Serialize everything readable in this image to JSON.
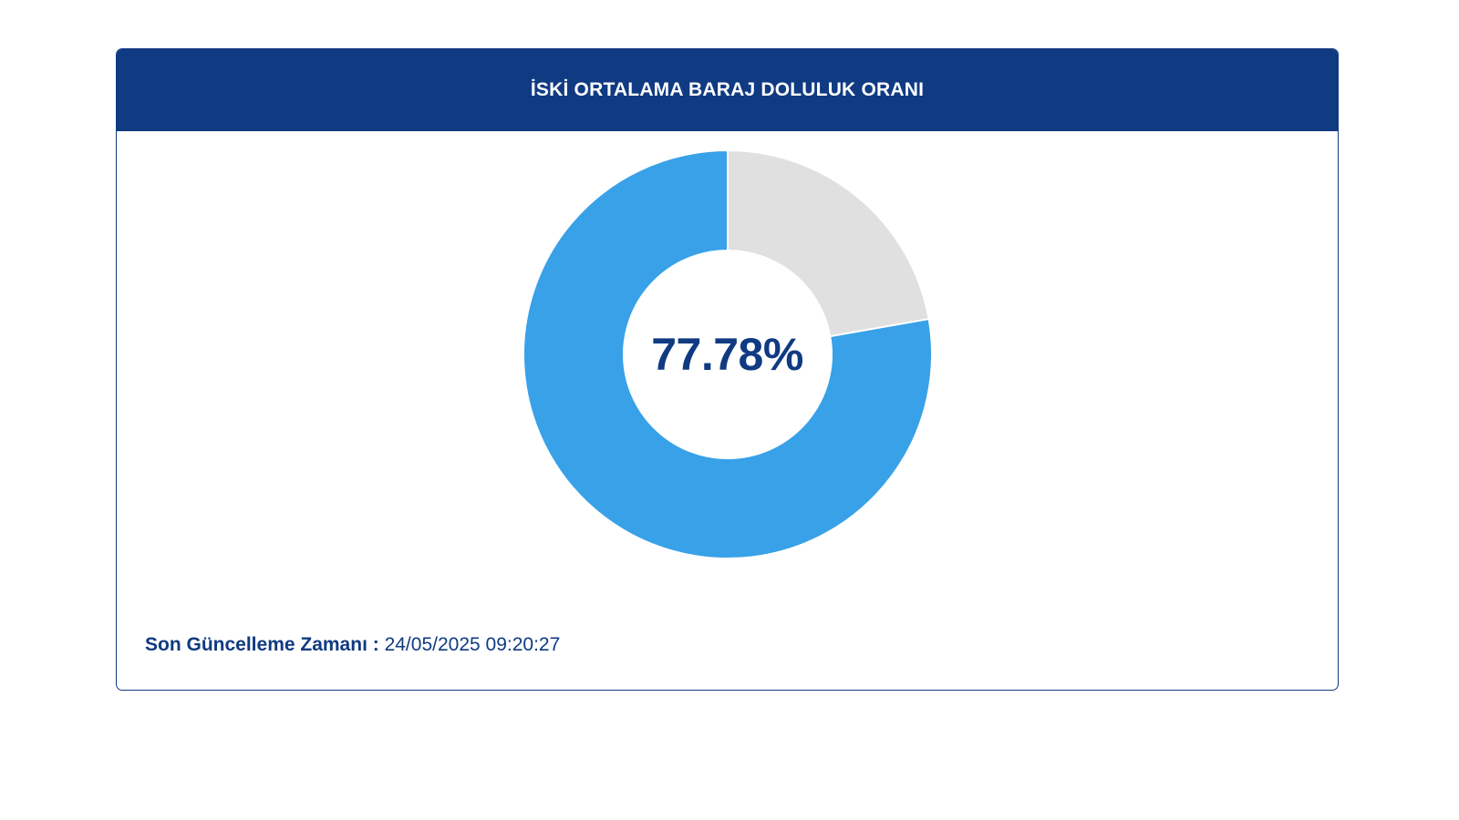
{
  "card": {
    "title": "İSKİ ORTALAMA BARAJ DOLULUK ORANI"
  },
  "chart_data": {
    "type": "pie",
    "slices": [
      {
        "value": 77.78,
        "color": "#38a1e8"
      },
      {
        "value": 22.22,
        "color": "#e0e0e0"
      }
    ],
    "center_label": "77.78%",
    "donut": true
  },
  "footer": {
    "label": "Son Güncelleme Zamanı :",
    "value": "24/05/2025 09:20:27"
  },
  "colors": {
    "primary": "#103a82",
    "filled": "#38a1e8",
    "empty": "#e0e0e0"
  }
}
